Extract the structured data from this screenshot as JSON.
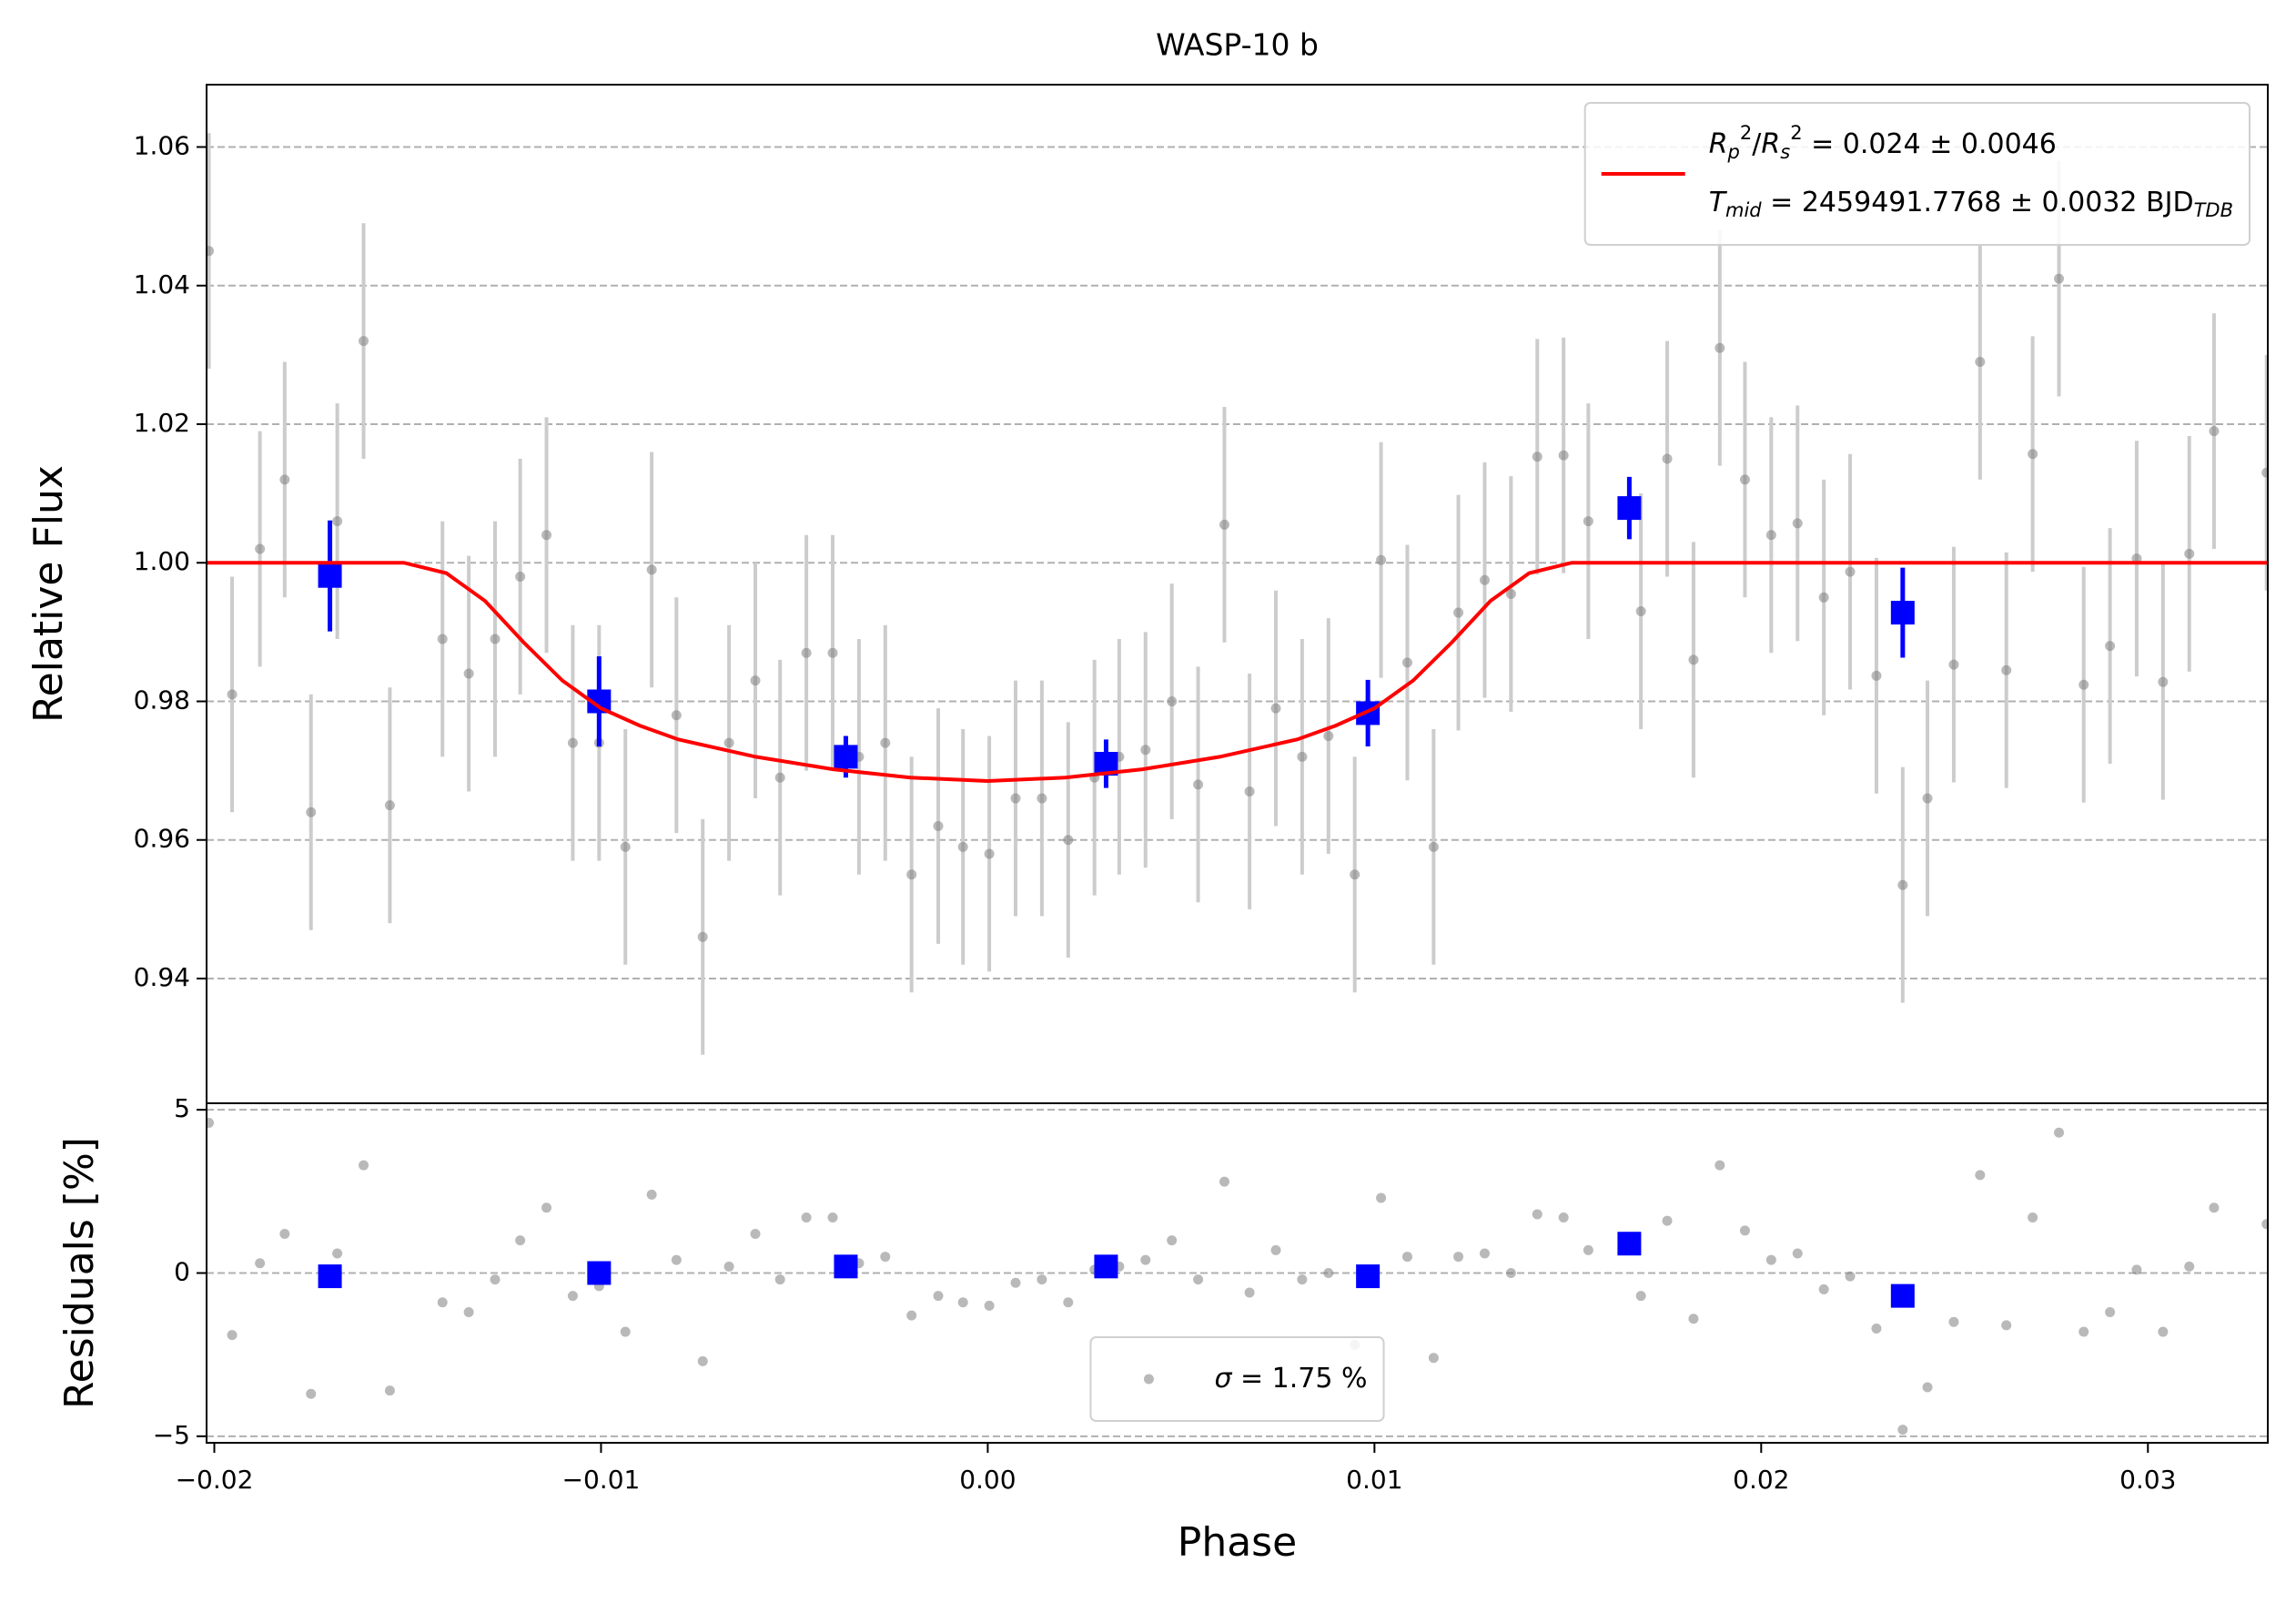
{
  "chart_data": [
    {
      "type": "scatter",
      "title": "WASP-10 b",
      "ylabel": "Relative Flux",
      "xlim": [
        -0.0202,
        0.0331
      ],
      "ylim": [
        0.922,
        1.069
      ],
      "yticks": [
        0.94,
        0.96,
        0.98,
        {
          "value": 1.0,
          "label": "1.00"
        },
        1.02,
        1.04,
        1.06
      ],
      "grid": true,
      "legend_loc": "upper right",
      "series": [
        {
          "marker": "circle",
          "color": "#808080",
          "error_color": "#cccccc",
          "error": 0.017,
          "x": [
            -0.02014,
            -0.01954,
            -0.01882,
            -0.01818,
            -0.0175,
            -0.01682,
            -0.01614,
            -0.01546,
            -0.0141,
            -0.01342,
            -0.01274,
            -0.01209,
            -0.01141,
            -0.01073,
            -0.01005,
            -0.00937,
            -0.00869,
            -0.00805,
            -0.00737,
            -0.00669,
            -0.00601,
            -0.00537,
            -0.00469,
            -0.00401,
            -0.00333,
            -0.00265,
            -0.00197,
            -0.00128,
            -0.00064,
            4e-05,
            0.00072,
            0.0014,
            0.00208,
            0.00276,
            0.0034,
            0.00408,
            0.00476,
            0.00544,
            0.00612,
            0.00677,
            0.00745,
            0.00813,
            0.00881,
            0.00949,
            0.01017,
            0.01085,
            0.01153,
            0.01217,
            0.01285,
            0.01353,
            0.01421,
            0.01489,
            0.01553,
            0.01689,
            0.01757,
            0.01825,
            0.01893,
            0.01958,
            0.02026,
            0.02094,
            0.02162,
            0.0223,
            0.02298,
            0.02366,
            0.0243,
            0.02498,
            0.02566,
            0.02634,
            0.02702,
            0.0277,
            0.02834,
            0.02902,
            0.02971,
            0.03039,
            0.03107,
            0.03171,
            0.03307
          ],
          "values": [
            1.045,
            0.981,
            1.002,
            1.012,
            0.964,
            1.006,
            1.032,
            0.965,
            0.989,
            0.984,
            0.989,
            0.998,
            1.004,
            0.974,
            0.974,
            0.959,
            0.999,
            0.978,
            0.946,
            0.974,
            0.983,
            0.969,
            0.987,
            0.987,
            0.972,
            0.974,
            0.955,
            0.962,
            0.959,
            0.958,
            0.966,
            0.966,
            0.96,
            0.969,
            0.972,
            0.973,
            0.98,
            0.968,
            1.0055,
            0.967,
            0.979,
            0.972,
            0.975,
            0.955,
            1.0004,
            0.9856,
            0.959,
            0.9928,
            0.9975,
            0.9955,
            1.0153,
            1.0155,
            1.006,
            0.993,
            1.015,
            0.986,
            1.031,
            1.012,
            1.004,
            1.0057,
            0.995,
            0.9987,
            0.9837,
            0.9535,
            0.966,
            0.9853,
            1.029,
            0.9845,
            1.0157,
            1.041,
            0.9824,
            0.988,
            1.0006,
            0.9828,
            1.0013,
            1.019,
            1.013
          ]
        },
        {
          "marker": "square",
          "color": "#0000ff",
          "error_color": "#0000ff",
          "x": [
            -0.01701,
            -0.01005,
            -0.00367,
            0.00306,
            0.00983,
            0.01659,
            0.02366
          ],
          "values": [
            0.9981,
            0.98,
            0.972,
            0.971,
            0.9783,
            1.0079,
            0.9928
          ],
          "error": [
            0.008,
            0.0065,
            0.003,
            0.0035,
            0.0048,
            0.0045,
            0.0065
          ]
        },
        {
          "style": "line",
          "color": "#ff0000",
          "name": [
            [
              {
                "t": "R",
                "i": true
              },
              {
                "t": "p",
                "i": true,
                "s": "sub"
              },
              {
                "t": "2",
                "s": "sup"
              },
              {
                "t": "/"
              },
              {
                "t": "R",
                "i": true
              },
              {
                "t": "s",
                "i": true,
                "s": "sub"
              },
              {
                "t": "2",
                "s": "sup"
              },
              {
                "t": " = 0.024 ± 0.0046"
              }
            ],
            [
              {
                "t": "T",
                "i": true
              },
              {
                "t": "mid",
                "i": true,
                "s": "sub"
              },
              {
                "t": " = 2459491.7768 ± 0.0032 BJD"
              },
              {
                "t": "TDB",
                "i": true,
                "s": "sub"
              }
            ]
          ],
          "x": [
            -0.0202,
            -0.0151,
            -0.014,
            -0.013,
            -0.012,
            -0.011,
            -0.01,
            -0.009,
            -0.008,
            -0.006,
            -0.004,
            -0.002,
            0,
            0.002,
            0.004,
            0.006,
            0.008,
            0.009,
            0.01,
            0.011,
            0.012,
            0.013,
            0.014,
            0.0151,
            0.0331
          ],
          "values": [
            1,
            1,
            0.9985,
            0.9945,
            0.9885,
            0.983,
            0.979,
            0.9765,
            0.9745,
            0.972,
            0.9702,
            0.969,
            0.9685,
            0.969,
            0.9702,
            0.972,
            0.9745,
            0.9765,
            0.979,
            0.983,
            0.9885,
            0.9945,
            0.9985,
            1,
            1
          ]
        }
      ]
    },
    {
      "type": "scatter",
      "ylabel": "Residuals [%]",
      "xlabel": "Phase",
      "xlim": [
        -0.0202,
        0.0331
      ],
      "ylim": [
        -5.2,
        5.2
      ],
      "yticks": [
        {
          "value": -5,
          "label": "−5"
        },
        0,
        5
      ],
      "xticks": [
        {
          "value": -0.02,
          "label": "−0.02"
        },
        {
          "value": -0.01,
          "label": "−0.01"
        },
        {
          "value": 0,
          "label": "0.00"
        },
        0.01,
        0.02,
        0.03
      ],
      "grid": true,
      "legend_loc": "lower center",
      "series": [
        {
          "marker": "circle",
          "color": "#808080",
          "name": [
            [
              {
                "t": "σ",
                "i": true
              },
              {
                "t": " = 1.75 %"
              }
            ]
          ],
          "x": [
            -0.02014,
            -0.01954,
            -0.01882,
            -0.01818,
            -0.0175,
            -0.01682,
            -0.01614,
            -0.01546,
            -0.0141,
            -0.01342,
            -0.01274,
            -0.01209,
            -0.01141,
            -0.01073,
            -0.01005,
            -0.00937,
            -0.00869,
            -0.00805,
            -0.00737,
            -0.00669,
            -0.00601,
            -0.00537,
            -0.00469,
            -0.00401,
            -0.00333,
            -0.00265,
            -0.00197,
            -0.00128,
            -0.00064,
            4e-05,
            0.00072,
            0.0014,
            0.00208,
            0.00276,
            0.0034,
            0.00408,
            0.00476,
            0.00544,
            0.00612,
            0.00677,
            0.00745,
            0.00813,
            0.00881,
            0.00949,
            0.01017,
            0.01085,
            0.01153,
            0.01217,
            0.01285,
            0.01353,
            0.01421,
            0.01489,
            0.01553,
            0.01689,
            0.01757,
            0.01825,
            0.01893,
            0.01958,
            0.02026,
            0.02094,
            0.02162,
            0.0223,
            0.02298,
            0.02366,
            0.0243,
            0.02498,
            0.02566,
            0.02634,
            0.02702,
            0.0277,
            0.02834,
            0.02902,
            0.02971,
            0.03039,
            0.03107,
            0.03171,
            0.03307
          ],
          "values": [
            4.6,
            -1.9,
            0.3,
            1.2,
            -3.7,
            0.6,
            3.3,
            -3.6,
            -0.9,
            -1.2,
            -0.2,
            1,
            2,
            -0.7,
            -0.4,
            -1.8,
            2.4,
            0.4,
            -2.7,
            0.2,
            1.2,
            -0.2,
            1.7,
            1.7,
            0.3,
            0.5,
            -1.3,
            -0.7,
            -0.9,
            -1,
            -0.3,
            -0.2,
            -0.9,
            0.1,
            0.2,
            0.4,
            1,
            -0.2,
            2.8,
            -0.6,
            0.7,
            -0.2,
            0,
            -2.2,
            2.3,
            0.5,
            -2.6,
            0.5,
            0.6,
            0,
            1.8,
            1.7,
            0.7,
            -0.7,
            1.6,
            -1.4,
            3.3,
            1.3,
            0.4,
            0.6,
            -0.5,
            -0.1,
            -1.7,
            -4.8,
            -3.5,
            -1.5,
            3,
            -1.6,
            1.7,
            4.3,
            -1.8,
            -1.2,
            0.1,
            -1.8,
            0.2,
            2,
            1.5
          ]
        },
        {
          "marker": "square",
          "color": "#0000ff",
          "x": [
            -0.01701,
            -0.01005,
            -0.00367,
            0.00306,
            0.00983,
            0.01659,
            0.02366
          ],
          "values": [
            -0.1,
            0,
            0.2,
            0.2,
            -0.1,
            0.9,
            -0.7
          ]
        }
      ]
    }
  ]
}
